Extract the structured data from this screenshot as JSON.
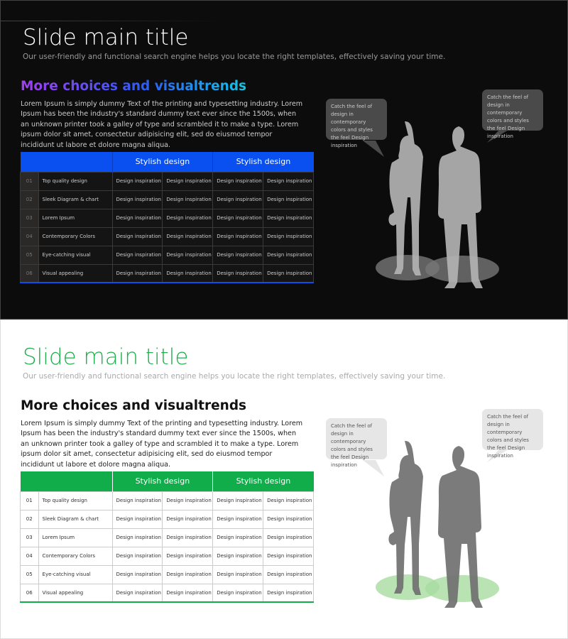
{
  "slides": [
    {
      "theme": "dark",
      "accent": "#0a4ff0",
      "title": "Slide main title",
      "subtitle": "Our user-friendly and functional search engine helps you locate the right templates, effectively saving your time.",
      "heading": "More choices and visualtrends",
      "body": "Lorem Ipsum is simply dummy Text of the printing and typesetting industry. Lorem Ipsum has been the industry's standard dummy text ever since the 1500s, when an unknown printer took a galley of type and scrambled it to make a type. Lorem ipsum dolor sit amet, consectetur adipisicing elit, sed do eiusmod tempor incididunt ut labore et dolore magna aliqua.",
      "headers": [
        "Stylish design",
        "Stylish design"
      ],
      "rows": [
        {
          "num": "01",
          "label": "Top quality design",
          "cells": [
            "Design inspiration",
            "Design inspiration",
            "Design inspiration",
            "Design inspiration"
          ]
        },
        {
          "num": "02",
          "label": "Sleek Diagram & chart",
          "cells": [
            "Design inspiration",
            "Design inspiration",
            "Design inspiration",
            "Design inspiration"
          ]
        },
        {
          "num": "03",
          "label": "Lorem Ipsum",
          "cells": [
            "Design inspiration",
            "Design inspiration",
            "Design inspiration",
            "Design inspiration"
          ]
        },
        {
          "num": "04",
          "label": "Contemporary Colors",
          "cells": [
            "Design inspiration",
            "Design inspiration",
            "Design inspiration",
            "Design inspiration"
          ]
        },
        {
          "num": "05",
          "label": "Eye-catching visual",
          "cells": [
            "Design inspiration",
            "Design inspiration",
            "Design inspiration",
            "Design inspiration"
          ]
        },
        {
          "num": "06",
          "label": "Visual appealing",
          "cells": [
            "Design inspiration",
            "Design inspiration",
            "Design inspiration",
            "Design inspiration"
          ]
        }
      ],
      "bubbles": [
        "Catch the feel of design in contemporary colors and styles the feel Design inspiration",
        "Catch the feel of design in contemporary colors and styles the feel Design inspiration"
      ],
      "silhouette_color": "#b3b3b3",
      "shadow_color": "#777777"
    },
    {
      "theme": "light",
      "accent": "#12ad4b",
      "title": "Slide main title",
      "subtitle": "Our user-friendly and functional search engine helps you locate the right templates, effectively saving your time.",
      "heading": "More choices and visualtrends",
      "body": "Lorem Ipsum is simply dummy Text of the printing and typesetting industry. Lorem Ipsum has been the industry's standard dummy text ever since the 1500s, when an unknown printer took a galley of type and scrambled it to make a type. Lorem ipsum dolor sit amet, consectetur adipisicing elit, sed do eiusmod tempor incididunt ut labore et dolore magna aliqua.",
      "headers": [
        "Stylish design",
        "Stylish design"
      ],
      "rows": [
        {
          "num": "01",
          "label": "Top quality design",
          "cells": [
            "Design inspiration",
            "Design inspiration",
            "Design inspiration",
            "Design inspiration"
          ]
        },
        {
          "num": "02",
          "label": "Sleek Diagram & chart",
          "cells": [
            "Design inspiration",
            "Design inspiration",
            "Design inspiration",
            "Design inspiration"
          ]
        },
        {
          "num": "03",
          "label": "Lorem Ipsum",
          "cells": [
            "Design inspiration",
            "Design inspiration",
            "Design inspiration",
            "Design inspiration"
          ]
        },
        {
          "num": "04",
          "label": "Contemporary Colors",
          "cells": [
            "Design inspiration",
            "Design inspiration",
            "Design inspiration",
            "Design inspiration"
          ]
        },
        {
          "num": "05",
          "label": "Eye-catching visual",
          "cells": [
            "Design inspiration",
            "Design inspiration",
            "Design inspiration",
            "Design inspiration"
          ]
        },
        {
          "num": "06",
          "label": "Visual appealing",
          "cells": [
            "Design inspiration",
            "Design inspiration",
            "Design inspiration",
            "Design inspiration"
          ]
        }
      ],
      "bubbles": [
        "Catch the feel of design in contemporary colors and styles the feel Design inspiration",
        "Catch the feel of design in contemporary colors and styles the feel Design inspiration"
      ],
      "silhouette_color": "#707070",
      "shadow_color": "#a8dca0"
    }
  ]
}
